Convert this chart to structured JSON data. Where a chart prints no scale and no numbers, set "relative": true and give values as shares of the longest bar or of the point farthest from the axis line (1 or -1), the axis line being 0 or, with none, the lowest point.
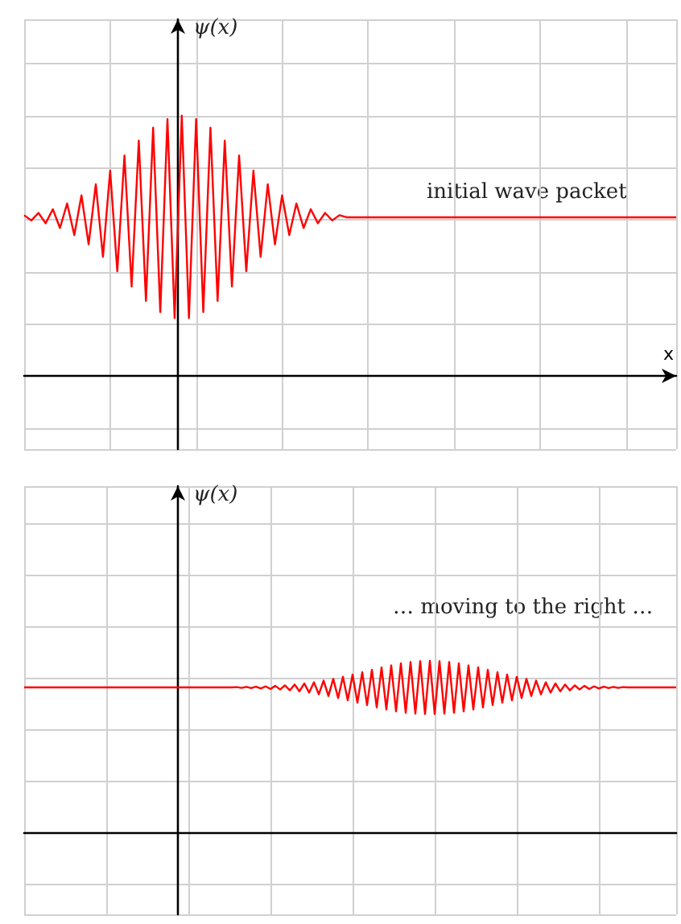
{
  "chart_data": [
    {
      "type": "line",
      "relative": true,
      "ylabel": "ψ(x)",
      "xlabel": "x",
      "annotations": [
        "initial wave packet"
      ],
      "grid": true,
      "categories": [
        null,
        null,
        null,
        null,
        null,
        null,
        null,
        null,
        null,
        null,
        null,
        null,
        null,
        null,
        null,
        null,
        null,
        null,
        null,
        null,
        null,
        null,
        null,
        null,
        null,
        null,
        null,
        null,
        null,
        null,
        null,
        null,
        null,
        null,
        null,
        null,
        null,
        null,
        null,
        null,
        null,
        null,
        null,
        null,
        null,
        null,
        null,
        null,
        null,
        null,
        null,
        null,
        null,
        null,
        null,
        null,
        null,
        null,
        null,
        null,
        null,
        null,
        null,
        null,
        null,
        null,
        null,
        null,
        null,
        null,
        null,
        null,
        null,
        null,
        null,
        null,
        null,
        null,
        null,
        null,
        null,
        null,
        null,
        null,
        null,
        null,
        null,
        null,
        null,
        null,
        null,
        null
      ],
      "series": [
        {
          "color": "#ff0000",
          "values": [
            0.618,
            0.598,
            0.627,
            0.587,
            0.641,
            0.569,
            0.663,
            0.542,
            0.694,
            0.506,
            0.737,
            0.458,
            0.789,
            0.403,
            0.847,
            0.344,
            0.904,
            0.289,
            0.954,
            0.246,
            0.987,
            0.223,
            1,
            0.223,
            0.987,
            0.246,
            0.954,
            0.289,
            0.904,
            0.344,
            0.847,
            0.403,
            0.789,
            0.458,
            0.737,
            0.506,
            0.694,
            0.542,
            0.663,
            0.569,
            0.641,
            0.587,
            0.627,
            0.598,
            0.618,
            0.61,
            0.61,
            0.61,
            0.61,
            0.61,
            0.61,
            0.61,
            0.61,
            0.61,
            0.61,
            0.61,
            0.61,
            0.61,
            0.61,
            0.61,
            0.61,
            0.61,
            0.61,
            0.61,
            0.61,
            0.61,
            0.61,
            0.61,
            0.61,
            0.61,
            0.61,
            0.61,
            0.61,
            0.61,
            0.61,
            0.61,
            0.61,
            0.61,
            0.61,
            0.61,
            0.61,
            0.61,
            0.61,
            0.61,
            0.61,
            0.61,
            0.61,
            0.61,
            0.61,
            0.61,
            0.61,
            0.61
          ]
        }
      ]
    },
    {
      "type": "line",
      "relative": true,
      "ylabel": "ψ(x)",
      "annotations": [
        "… moving to the right …"
      ],
      "grid": true,
      "categories": [
        null,
        null,
        null,
        null,
        null,
        null,
        null,
        null,
        null,
        null,
        null,
        null,
        null,
        null,
        null,
        null,
        null,
        null,
        null,
        null,
        null,
        null,
        null,
        null,
        null,
        null,
        null,
        null,
        null,
        null,
        null,
        null,
        null,
        null,
        null,
        null,
        null,
        null,
        null,
        null,
        null,
        null,
        null,
        null,
        null,
        null,
        null,
        null,
        null,
        null,
        null,
        null,
        null,
        null,
        null,
        null,
        null,
        null,
        null,
        null,
        null,
        null,
        null,
        null,
        null,
        null,
        null,
        null,
        null,
        null,
        null,
        null,
        null,
        null,
        null,
        null,
        null,
        null,
        null,
        null,
        null,
        null,
        null,
        null,
        null,
        null,
        null,
        null,
        null,
        null,
        null,
        null,
        null,
        null,
        null,
        null,
        null,
        null,
        null,
        null,
        null,
        null,
        null,
        null,
        null,
        null,
        null,
        null,
        null,
        null,
        null,
        null,
        null,
        null,
        null,
        null,
        null,
        null,
        null,
        null,
        null,
        null,
        null,
        null,
        null,
        null,
        null,
        null,
        null,
        null,
        null,
        null,
        null,
        null,
        null,
        null
      ],
      "series": [
        {
          "color": "#ff0000",
          "values": [
            0.845,
            0.845,
            0.845,
            0.845,
            0.845,
            0.845,
            0.845,
            0.845,
            0.845,
            0.845,
            0.845,
            0.845,
            0.845,
            0.845,
            0.845,
            0.845,
            0.845,
            0.845,
            0.845,
            0.845,
            0.845,
            0.845,
            0.845,
            0.845,
            0.845,
            0.845,
            0.845,
            0.845,
            0.845,
            0.845,
            0.845,
            0.845,
            0.845,
            0.845,
            0.845,
            0.845,
            0.845,
            0.845,
            0.845,
            0.845,
            0.845,
            0.845,
            0.845,
            0.845,
            0.847,
            0.842,
            0.848,
            0.841,
            0.849,
            0.839,
            0.851,
            0.836,
            0.854,
            0.833,
            0.857,
            0.828,
            0.862,
            0.822,
            0.868,
            0.815,
            0.875,
            0.805,
            0.885,
            0.795,
            0.895,
            0.783,
            0.907,
            0.77,
            0.92,
            0.756,
            0.934,
            0.742,
            0.948,
            0.728,
            0.962,
            0.716,
            0.974,
            0.705,
            0.985,
            0.697,
            0.993,
            0.692,
            0.998,
            0.69,
            1,
            0.69,
            0.998,
            0.692,
            0.993,
            0.697,
            0.985,
            0.705,
            0.974,
            0.716,
            0.962,
            0.728,
            0.948,
            0.742,
            0.934,
            0.756,
            0.92,
            0.77,
            0.907,
            0.783,
            0.895,
            0.795,
            0.885,
            0.805,
            0.875,
            0.815,
            0.868,
            0.822,
            0.862,
            0.828,
            0.857,
            0.833,
            0.854,
            0.836,
            0.851,
            0.839,
            0.849,
            0.841,
            0.848,
            0.842,
            0.847,
            0.845,
            0.845,
            0.845,
            0.845,
            0.845,
            0.845,
            0.845,
            0.845,
            0.845,
            0.845,
            0.845
          ]
        }
      ]
    }
  ]
}
